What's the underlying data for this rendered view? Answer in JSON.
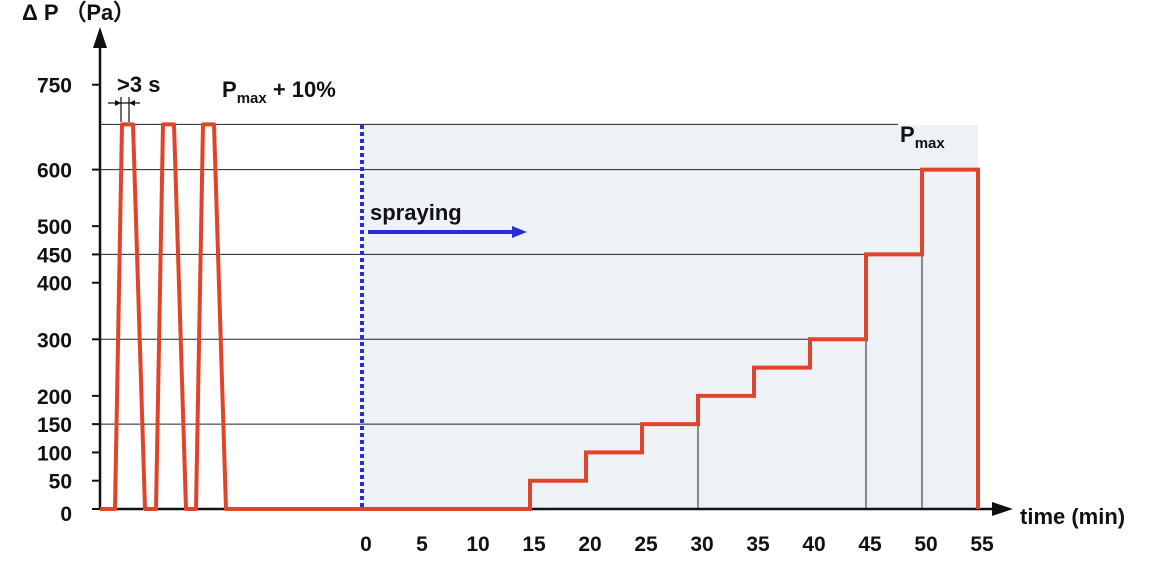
{
  "chart_data": {
    "type": "line",
    "ylabel": "Δ P （Pa）",
    "xlabel": "time (min)",
    "y_ticks": [
      "0",
      "50",
      "100",
      "150",
      "200",
      "300",
      "400",
      "450",
      "500",
      "600",
      "750"
    ],
    "y_tick_values": [
      0,
      50,
      100,
      150,
      200,
      300,
      400,
      450,
      500,
      600,
      750
    ],
    "x_ticks": [
      "0",
      "5",
      "10",
      "15",
      "20",
      "25",
      "30",
      "35",
      "40",
      "45",
      "50",
      "55"
    ],
    "x_tick_values": [
      0,
      5,
      10,
      15,
      20,
      25,
      30,
      35,
      40,
      45,
      50,
      55
    ],
    "ylim": [
      0,
      800
    ],
    "xlim": [
      0,
      55
    ],
    "pulse_level": 680,
    "pulse_count": 3,
    "step_series": {
      "x": [
        0,
        15,
        15,
        20,
        20,
        25,
        25,
        30,
        30,
        35,
        35,
        40,
        40,
        45,
        45,
        50,
        50,
        55,
        55
      ],
      "y": [
        0,
        0,
        50,
        50,
        100,
        100,
        150,
        150,
        200,
        200,
        250,
        250,
        300,
        300,
        450,
        450,
        600,
        600,
        0
      ]
    },
    "reference_lines": [
      680,
      600,
      450,
      300,
      150
    ],
    "annotations": {
      "pulse_width": ">3 s",
      "pmax_plus_main": "P",
      "pmax_plus_sub": "max",
      "pmax_plus_tail": " + 10%",
      "pmax_main": "P",
      "pmax_sub": "max",
      "spraying": "spraying"
    },
    "colors": {
      "series": "#e0442a",
      "spray_marker": "#2b2bd9",
      "shade": "#eef2f6",
      "axis": "#111111",
      "gridline": "#222222"
    }
  }
}
